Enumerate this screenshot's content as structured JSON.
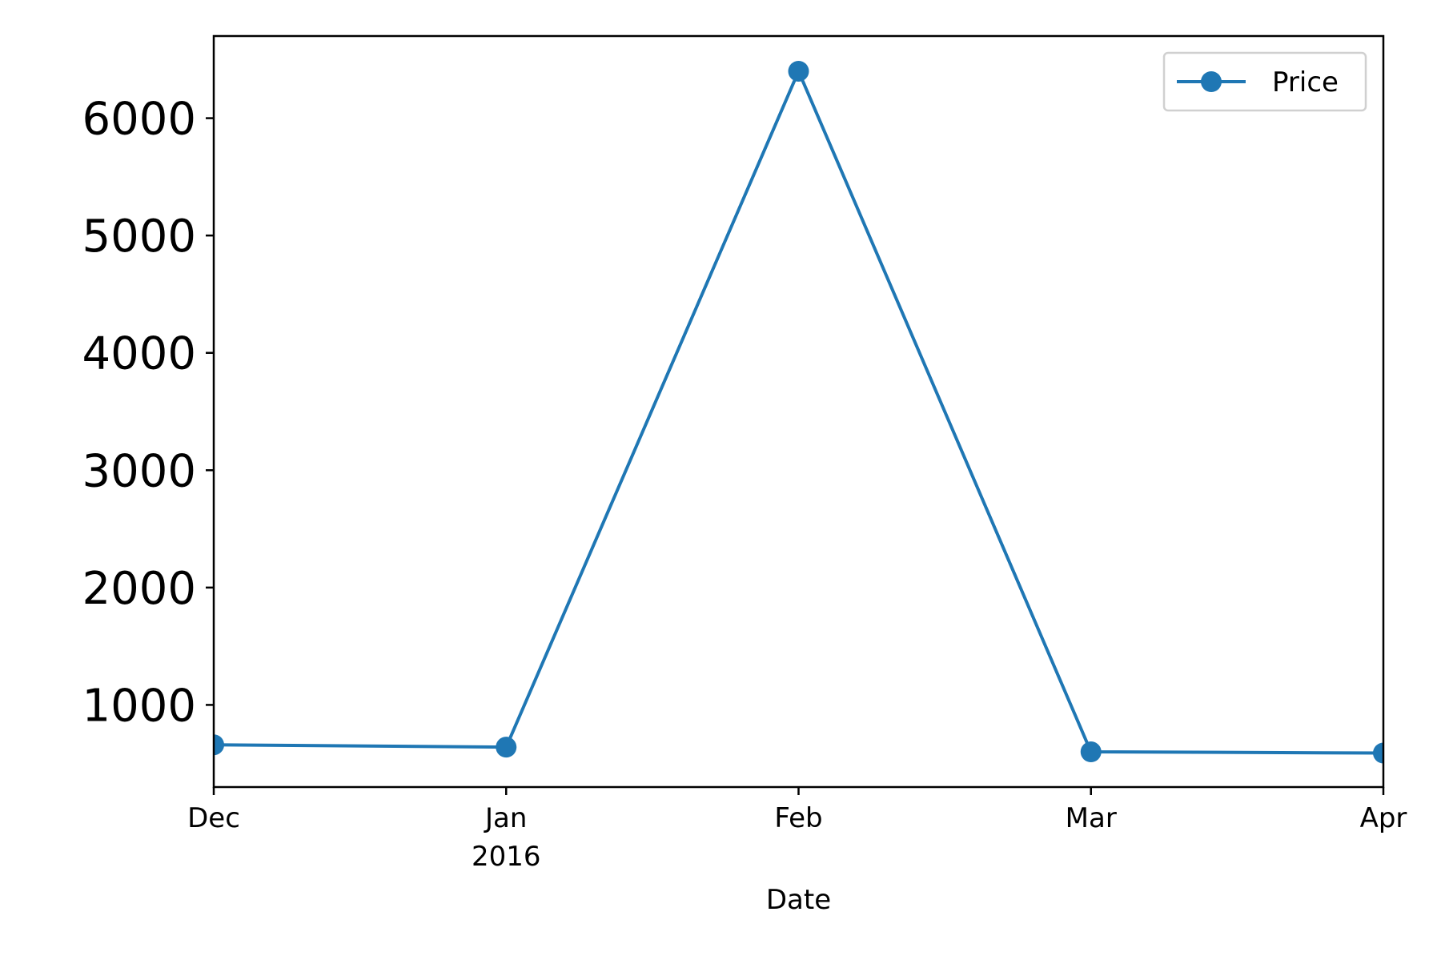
{
  "chart_data": {
    "type": "line",
    "title": "",
    "xlabel": "Date",
    "ylabel": "",
    "x": [
      "2015-12",
      "2016-01",
      "2016-02",
      "2016-03",
      "2016-04"
    ],
    "x_tick_labels": [
      "Dec",
      "Jan",
      "Feb",
      "Mar",
      "Apr"
    ],
    "x_tick_sublabels": [
      "",
      "2016",
      "",
      "",
      ""
    ],
    "y_ticks": [
      1000,
      2000,
      3000,
      4000,
      5000,
      6000
    ],
    "y_tick_labels": [
      "1000",
      "2000",
      "3000",
      "4000",
      "5000",
      "6000"
    ],
    "ylim": [
      300,
      6700
    ],
    "series": [
      {
        "name": "Price",
        "values": [
          660,
          640,
          6400,
          600,
          590
        ],
        "color": "#1f77b4",
        "marker": "circle"
      }
    ],
    "legend": {
      "position": "top-right",
      "entries": [
        "Price"
      ]
    },
    "grid": false
  }
}
